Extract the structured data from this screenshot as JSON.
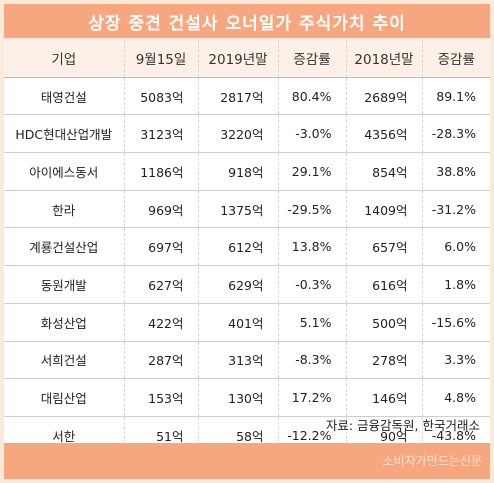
{
  "title": "상장 중견 건설사 오너일가 주식가치 추이",
  "headers": [
    "기업",
    "9월15일",
    "2019년말",
    "증감률",
    "2018년말",
    "증감률"
  ],
  "rows": [
    [
      "태영건설",
      "5083억",
      "2817억",
      "80.4%",
      "2689억",
      "89.1%"
    ],
    [
      "HDC현대산업개발",
      "3123억",
      "3220억",
      "-3.0%",
      "4356억",
      "-28.3%"
    ],
    [
      "아이에스동서",
      "1186억",
      "918억",
      "29.1%",
      "854억",
      "38.8%"
    ],
    [
      "한라",
      "969억",
      "1375억",
      "-29.5%",
      "1409억",
      "-31.2%"
    ],
    [
      "계룡건설산업",
      "697억",
      "612억",
      "13.8%",
      "657억",
      "6.0%"
    ],
    [
      "동원개발",
      "627억",
      "629억",
      "-0.3%",
      "616억",
      "1.8%"
    ],
    [
      "화성산업",
      "422억",
      "401억",
      "5.1%",
      "500억",
      "-15.6%"
    ],
    [
      "서희건설",
      "287억",
      "313억",
      "-8.3%",
      "278억",
      "3.3%"
    ],
    [
      "대림산업",
      "153억",
      "130억",
      "17.2%",
      "146억",
      "4.8%"
    ],
    [
      "서한",
      "51억",
      "58억",
      "-12.2%",
      "90억",
      "-43.8%"
    ]
  ],
  "source": "자료: 금융감독원, 한국거래소",
  "watermark": "소비자가만드는신문",
  "colors": {
    "accent": "#f6a77f",
    "background": "#fbe9d9",
    "header_background": "#fdf1e7"
  }
}
